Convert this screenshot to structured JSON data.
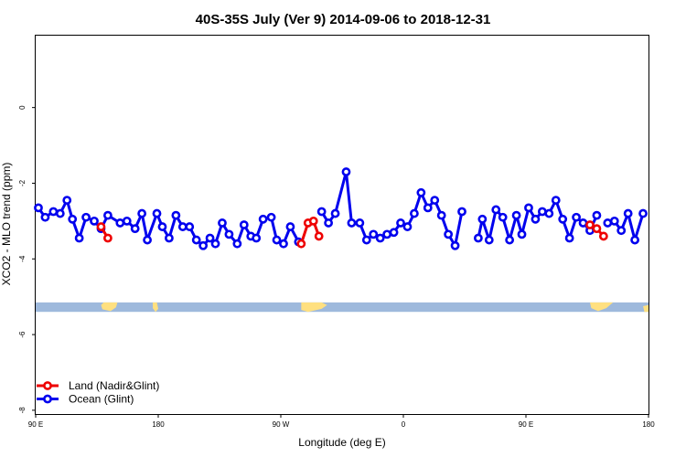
{
  "chart_data": {
    "type": "line",
    "title": "40S-35S July (Ver 9)   2014-09-06 to 2018-12-31",
    "xlabel": "Longitude (deg E)",
    "ylabel": "XCO2 - MLO trend (ppm)",
    "xlim": [
      90,
      540
    ],
    "ylim": [
      -8.1,
      1.9
    ],
    "x_ticks": [
      {
        "value": 90,
        "label": "90 E"
      },
      {
        "value": 180,
        "label": "180"
      },
      {
        "value": 270,
        "label": "90 W"
      },
      {
        "value": 360,
        "label": "0"
      },
      {
        "value": 450,
        "label": "90 E"
      },
      {
        "value": 540,
        "label": "180"
      }
    ],
    "y_ticks": [
      {
        "value": 0,
        "label": "0"
      },
      {
        "value": -2,
        "label": "-2"
      },
      {
        "value": -4,
        "label": "-4"
      },
      {
        "value": -6,
        "label": "-6"
      },
      {
        "value": -8,
        "label": "-8"
      }
    ],
    "legend_position": "bottom-left",
    "series": [
      {
        "name": "Ocean (Glint)",
        "color": "#0000ee",
        "segments": [
          [
            [
              92,
              -2.65
            ],
            [
              97,
              -2.9
            ],
            [
              103,
              -2.75
            ],
            [
              108,
              -2.8
            ],
            [
              113,
              -2.45
            ],
            [
              117,
              -2.95
            ],
            [
              122,
              -3.45
            ],
            [
              127,
              -2.9
            ],
            [
              133,
              -3.0
            ],
            [
              138,
              -3.2
            ],
            [
              143,
              -2.85
            ],
            [
              152,
              -3.05
            ],
            [
              157,
              -3.0
            ],
            [
              163,
              -3.2
            ],
            [
              168,
              -2.8
            ],
            [
              172,
              -3.5
            ],
            [
              179,
              -2.8
            ],
            [
              183,
              -3.15
            ],
            [
              188,
              -3.45
            ],
            [
              193,
              -2.85
            ],
            [
              198,
              -3.15
            ],
            [
              203,
              -3.15
            ],
            [
              208,
              -3.5
            ],
            [
              213,
              -3.65
            ],
            [
              218,
              -3.45
            ],
            [
              222,
              -3.6
            ],
            [
              227,
              -3.05
            ],
            [
              232,
              -3.35
            ],
            [
              238,
              -3.6
            ],
            [
              243,
              -3.1
            ],
            [
              248,
              -3.4
            ],
            [
              252,
              -3.45
            ],
            [
              257,
              -2.95
            ],
            [
              263,
              -2.9
            ],
            [
              267,
              -3.5
            ],
            [
              272,
              -3.6
            ],
            [
              277,
              -3.15
            ],
            [
              283,
              -3.55
            ]
          ],
          [
            [
              300,
              -2.75
            ],
            [
              305,
              -3.05
            ],
            [
              310,
              -2.8
            ],
            [
              318,
              -1.7
            ],
            [
              322,
              -3.05
            ],
            [
              328,
              -3.05
            ],
            [
              333,
              -3.5
            ],
            [
              338,
              -3.35
            ],
            [
              343,
              -3.45
            ],
            [
              348,
              -3.35
            ],
            [
              353,
              -3.3
            ],
            [
              358,
              -3.05
            ],
            [
              363,
              -3.15
            ],
            [
              368,
              -2.8
            ],
            [
              373,
              -2.25
            ],
            [
              378,
              -2.65
            ],
            [
              383,
              -2.45
            ],
            [
              388,
              -2.85
            ],
            [
              393,
              -3.35
            ],
            [
              398,
              -3.65
            ],
            [
              403,
              -2.75
            ]
          ],
          [
            [
              415,
              -3.45
            ],
            [
              418,
              -2.95
            ],
            [
              423,
              -3.5
            ],
            [
              428,
              -2.7
            ],
            [
              433,
              -2.9
            ],
            [
              438,
              -3.5
            ],
            [
              443,
              -2.85
            ],
            [
              447,
              -3.35
            ],
            [
              452,
              -2.65
            ],
            [
              457,
              -2.95
            ],
            [
              462,
              -2.75
            ],
            [
              467,
              -2.8
            ],
            [
              472,
              -2.45
            ],
            [
              477,
              -2.95
            ],
            [
              482,
              -3.45
            ],
            [
              487,
              -2.9
            ],
            [
              492,
              -3.05
            ],
            [
              497,
              -3.25
            ],
            [
              502,
              -2.85
            ]
          ],
          [
            [
              510,
              -3.05
            ],
            [
              515,
              -3.0
            ],
            [
              520,
              -3.25
            ],
            [
              525,
              -2.8
            ],
            [
              530,
              -3.5
            ],
            [
              536,
              -2.8
            ]
          ]
        ]
      },
      {
        "name": "Land (Nadir&Glint)",
        "color": "#ee0000",
        "segments": [
          [
            [
              138,
              -3.15
            ],
            [
              143,
              -3.45
            ]
          ],
          [
            [
              285,
              -3.6
            ],
            [
              290,
              -3.05
            ],
            [
              294,
              -3.0
            ],
            [
              298,
              -3.4
            ]
          ],
          [
            [
              497,
              -3.1
            ],
            [
              502,
              -3.2
            ],
            [
              507,
              -3.4
            ]
          ]
        ]
      }
    ],
    "map_strip": {
      "y_top": -5.15,
      "y_bottom": -5.4,
      "ocean_color": "#9eb9dc",
      "land_color": "#ffe080",
      "land_blobs": [
        [
          [
            140,
            -5.15
          ],
          [
            150,
            -5.15
          ],
          [
            149,
            -5.28
          ],
          [
            145,
            -5.38
          ],
          [
            139,
            -5.33
          ],
          [
            138,
            -5.22
          ]
        ],
        [
          [
            176,
            -5.15
          ],
          [
            179,
            -5.15
          ],
          [
            180,
            -5.32
          ],
          [
            178,
            -5.4
          ],
          [
            176,
            -5.3
          ]
        ],
        [
          [
            285,
            -5.15
          ],
          [
            300,
            -5.15
          ],
          [
            304,
            -5.22
          ],
          [
            300,
            -5.32
          ],
          [
            290,
            -5.4
          ],
          [
            285,
            -5.35
          ]
        ],
        [
          [
            497,
            -5.15
          ],
          [
            514,
            -5.15
          ],
          [
            509,
            -5.3
          ],
          [
            503,
            -5.38
          ],
          [
            498,
            -5.3
          ]
        ],
        [
          [
            536,
            -5.25
          ],
          [
            540,
            -5.22
          ],
          [
            540,
            -5.4
          ],
          [
            537,
            -5.4
          ]
        ]
      ]
    }
  }
}
